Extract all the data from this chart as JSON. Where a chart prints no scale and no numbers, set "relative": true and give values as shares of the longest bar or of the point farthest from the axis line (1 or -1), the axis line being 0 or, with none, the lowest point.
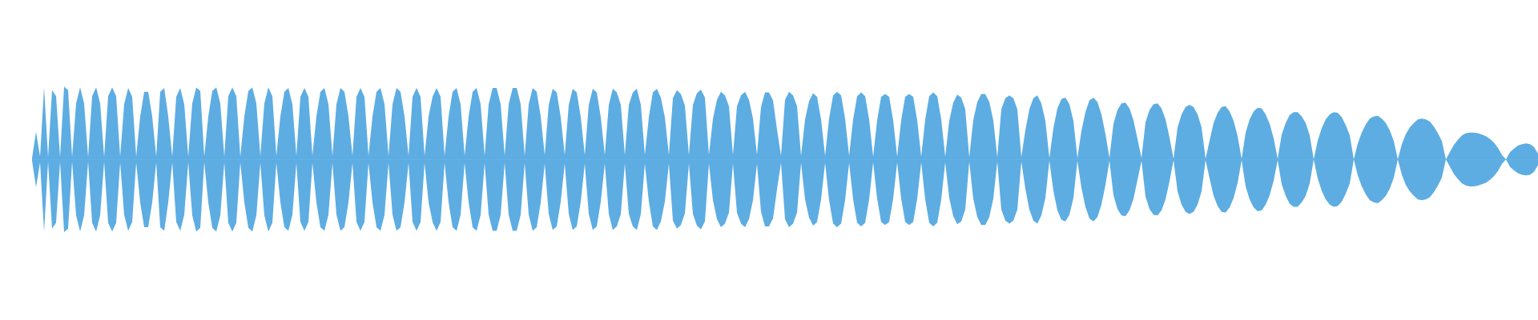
{
  "chart_data": {
    "type": "area",
    "relative": true,
    "marker": "none",
    "categories": [
      null,
      null,
      null,
      null,
      null,
      null,
      null,
      null,
      null,
      null,
      null,
      null,
      null,
      null,
      null,
      null,
      null,
      null,
      null,
      null,
      null,
      null,
      null,
      null,
      null,
      null,
      null,
      null,
      null,
      null,
      null,
      null,
      null,
      null,
      null,
      null,
      null,
      null,
      null,
      null,
      null,
      null,
      null,
      null,
      null,
      null,
      null,
      null,
      null,
      null,
      null,
      null,
      null,
      null,
      null,
      null,
      null,
      null,
      null,
      null,
      null,
      null,
      null,
      null,
      null,
      null,
      null,
      null,
      null,
      null,
      null,
      null,
      null,
      null,
      null,
      null,
      null,
      null,
      null,
      null,
      null,
      null,
      null,
      null,
      null,
      null,
      null,
      null,
      null,
      null,
      null,
      null,
      null,
      null,
      null,
      null,
      null,
      null,
      null,
      null,
      null,
      null,
      null,
      null,
      null,
      null,
      null,
      null,
      null,
      null,
      null,
      null,
      null,
      null,
      null,
      null,
      null,
      null,
      null,
      null,
      null,
      null,
      null,
      null,
      null,
      null,
      null,
      null,
      null,
      null,
      null,
      null,
      null,
      null,
      null,
      null,
      null,
      null,
      null,
      null,
      null,
      null,
      null,
      null,
      null,
      null,
      null,
      null,
      null,
      null,
      null,
      null,
      null,
      null,
      null,
      null,
      null,
      null,
      null,
      null,
      null,
      null,
      null,
      null,
      null,
      null,
      null,
      null,
      null,
      null,
      null,
      null,
      null,
      null,
      null,
      null,
      null,
      null,
      null,
      null,
      null,
      null,
      null,
      null,
      null,
      null,
      null,
      null,
      null,
      null,
      null,
      null,
      null,
      null,
      null,
      null,
      null,
      null,
      null,
      null,
      null,
      null,
      null,
      null,
      null,
      null,
      null,
      null,
      null,
      null,
      null,
      null,
      null,
      null,
      null,
      null,
      null,
      null,
      null,
      null,
      null,
      null,
      null,
      null,
      null,
      null,
      null,
      null,
      null,
      null,
      null,
      null,
      null,
      null,
      null,
      null,
      null,
      null,
      null,
      null,
      null,
      null,
      null,
      null,
      null,
      null,
      null,
      null,
      null,
      null,
      null,
      null,
      null,
      null,
      null,
      null,
      null,
      null,
      null,
      null,
      null,
      null,
      null,
      null,
      null,
      null,
      null,
      null,
      null,
      null,
      null,
      null,
      null,
      null,
      null,
      null,
      null,
      null,
      null,
      null,
      null,
      null,
      null,
      null,
      null,
      null,
      null,
      null,
      null,
      null,
      null,
      null,
      null,
      null,
      null,
      null,
      null,
      null,
      null,
      null,
      null,
      null,
      null,
      null,
      null,
      null,
      null,
      null,
      null,
      null,
      null,
      null,
      null,
      null,
      null,
      null,
      null,
      null,
      null,
      null,
      null,
      null,
      null,
      null,
      null,
      null,
      null,
      null,
      null,
      null,
      null,
      null,
      null,
      null,
      null,
      null,
      null,
      null,
      null,
      null,
      null,
      null,
      null,
      null,
      null,
      null,
      null,
      null,
      null,
      null,
      null,
      null,
      null,
      null,
      null,
      null,
      null,
      null,
      null,
      null,
      null,
      null,
      null,
      null,
      null,
      null,
      null,
      null,
      null,
      null,
      null,
      null,
      null,
      null,
      null,
      null,
      null
    ],
    "series": [
      {
        "color": "#5dade2",
        "values": [
          0.02,
          0.38,
          0.04,
          0.99,
          0.03,
          0.95,
          0.87,
          0.03,
          1.0,
          0.95,
          0.03,
          0.77,
          0.99,
          0.77,
          0.03,
          0.87,
          0.99,
          0.77,
          0.03,
          0.87,
          0.99,
          0.87,
          0.04,
          0.76,
          0.98,
          0.86,
          0.04,
          0.59,
          0.93,
          0.93,
          0.59,
          0.04,
          0.93,
          0.98,
          0.59,
          0.04,
          0.86,
          0.98,
          0.76,
          0.04,
          0.77,
          0.99,
          0.94,
          0.04,
          0.59,
          0.94,
          0.99,
          0.77,
          0.04,
          0.87,
          0.99,
          0.87,
          0.04,
          0.59,
          0.94,
          0.99,
          0.77,
          0.05,
          0.77,
          0.99,
          0.87,
          0.05,
          0.59,
          0.93,
          0.98,
          0.76,
          0.05,
          0.86,
          0.98,
          0.86,
          0.05,
          0.59,
          0.93,
          0.98,
          0.76,
          0.05,
          0.76,
          0.98,
          0.93,
          0.59,
          0.05,
          0.86,
          0.98,
          0.86,
          0.05,
          0.59,
          0.93,
          0.98,
          0.76,
          0.05,
          0.76,
          0.98,
          0.93,
          0.59,
          0.05,
          0.86,
          0.98,
          0.86,
          0.05,
          0.59,
          0.86,
          0.98,
          0.86,
          0.05,
          0.59,
          0.93,
          0.98,
          0.76,
          0.05,
          0.59,
          0.93,
          0.98,
          0.76,
          0.05,
          0.76,
          0.98,
          0.98,
          0.76,
          0.05,
          0.76,
          0.98,
          0.98,
          0.76,
          0.05,
          0.76,
          0.98,
          0.93,
          0.59,
          0.06,
          0.75,
          0.97,
          0.92,
          0.58,
          0.06,
          0.75,
          0.97,
          0.92,
          0.58,
          0.06,
          0.75,
          0.97,
          0.92,
          0.58,
          0.06,
          0.75,
          0.97,
          0.92,
          0.75,
          0.06,
          0.75,
          0.92,
          0.97,
          0.75,
          0.06,
          0.58,
          0.92,
          0.97,
          0.85,
          0.58,
          0.06,
          0.84,
          0.95,
          0.9,
          0.74,
          0.06,
          0.75,
          0.91,
          0.96,
          0.85,
          0.06,
          0.56,
          0.82,
          0.93,
          0.88,
          0.73,
          0.06,
          0.73,
          0.88,
          0.93,
          0.82,
          0.56,
          0.06,
          0.72,
          0.92,
          0.92,
          0.81,
          0.41,
          0.05,
          0.82,
          0.93,
          0.88,
          0.73,
          0.05,
          0.55,
          0.8,
          0.91,
          0.86,
          0.55,
          0.05,
          0.56,
          0.88,
          0.93,
          0.88,
          0.56,
          0.05,
          0.55,
          0.87,
          0.92,
          0.87,
          0.55,
          0.04,
          0.54,
          0.86,
          0.9,
          0.86,
          0.54,
          0.04,
          0.54,
          0.86,
          0.9,
          0.86,
          0.54,
          0.04,
          0.55,
          0.87,
          0.92,
          0.87,
          0.55,
          0.04,
          0.53,
          0.78,
          0.89,
          0.85,
          0.69,
          0.03,
          0.54,
          0.79,
          0.9,
          0.9,
          0.79,
          0.54,
          0.03,
          0.69,
          0.84,
          0.88,
          0.84,
          0.69,
          0.03,
          0.4,
          0.69,
          0.84,
          0.88,
          0.77,
          0.53,
          0.02,
          0.43,
          0.7,
          0.83,
          0.85,
          0.76,
          0.53,
          0.02,
          0.39,
          0.65,
          0.81,
          0.85,
          0.79,
          0.62,
          0.35,
          0.02,
          0.49,
          0.68,
          0.77,
          0.78,
          0.7,
          0.54,
          0.28,
          0.02,
          0.51,
          0.68,
          0.76,
          0.77,
          0.7,
          0.55,
          0.3,
          0.01,
          0.44,
          0.62,
          0.72,
          0.75,
          0.72,
          0.62,
          0.44,
          0.01,
          0.26,
          0.5,
          0.64,
          0.72,
          0.73,
          0.66,
          0.53,
          0.32,
          0.01,
          0.37,
          0.55,
          0.66,
          0.71,
          0.7,
          0.62,
          0.49,
          0.29,
          0.01,
          0.34,
          0.5,
          0.61,
          0.65,
          0.65,
          0.59,
          0.5,
          0.33,
          0,
          0.26,
          0.43,
          0.55,
          0.62,
          0.65,
          0.64,
          0.58,
          0.47,
          0.33,
          0,
          0.22,
          0.37,
          0.48,
          0.56,
          0.59,
          0.6,
          0.56,
          0.5,
          0.4,
          0.25,
          0,
          0.21,
          0.35,
          0.44,
          0.5,
          0.55,
          0.56,
          0.55,
          0.52,
          0.45,
          0.36,
          0.25,
          0,
          0.1,
          0.2,
          0.27,
          0.33,
          0.36,
          0.37,
          0.37,
          0.36,
          0.34,
          0.32,
          0.28,
          0.23,
          0.16,
          0.06,
          0,
          0.1,
          0.15,
          0.19,
          0.21,
          0.22,
          0.21,
          0.17,
          0.08
        ]
      },
      {
        "color": "#5dade2",
        "values": [
          -0.02,
          -0.38,
          -0.04,
          -0.99,
          -0.03,
          -0.95,
          -0.87,
          -0.03,
          -1.0,
          -0.95,
          -0.03,
          -0.77,
          -0.99,
          -0.77,
          -0.03,
          -0.87,
          -0.99,
          -0.77,
          -0.03,
          -0.87,
          -0.99,
          -0.87,
          -0.04,
          -0.76,
          -0.98,
          -0.86,
          -0.04,
          -0.59,
          -0.93,
          -0.93,
          -0.59,
          -0.04,
          -0.93,
          -0.98,
          -0.59,
          -0.04,
          -0.86,
          -0.98,
          -0.76,
          -0.04,
          -0.77,
          -0.99,
          -0.94,
          -0.04,
          -0.59,
          -0.94,
          -0.99,
          -0.77,
          -0.04,
          -0.87,
          -0.99,
          -0.87,
          -0.04,
          -0.59,
          -0.94,
          -0.99,
          -0.77,
          -0.05,
          -0.77,
          -0.99,
          -0.87,
          -0.05,
          -0.59,
          -0.93,
          -0.98,
          -0.76,
          -0.05,
          -0.86,
          -0.98,
          -0.86,
          -0.05,
          -0.59,
          -0.93,
          -0.98,
          -0.76,
          -0.05,
          -0.76,
          -0.98,
          -0.93,
          -0.59,
          -0.05,
          -0.86,
          -0.98,
          -0.86,
          -0.05,
          -0.59,
          -0.93,
          -0.98,
          -0.76,
          -0.05,
          -0.76,
          -0.98,
          -0.93,
          -0.59,
          -0.05,
          -0.86,
          -0.98,
          -0.86,
          -0.05,
          -0.59,
          -0.86,
          -0.98,
          -0.86,
          -0.05,
          -0.59,
          -0.93,
          -0.98,
          -0.76,
          -0.05,
          -0.59,
          -0.93,
          -0.98,
          -0.76,
          -0.05,
          -0.76,
          -0.98,
          -0.98,
          -0.76,
          -0.05,
          -0.76,
          -0.98,
          -0.98,
          -0.76,
          -0.05,
          -0.76,
          -0.98,
          -0.93,
          -0.59,
          -0.06,
          -0.75,
          -0.97,
          -0.92,
          -0.58,
          -0.06,
          -0.75,
          -0.97,
          -0.92,
          -0.58,
          -0.06,
          -0.75,
          -0.97,
          -0.92,
          -0.58,
          -0.06,
          -0.75,
          -0.97,
          -0.92,
          -0.75,
          -0.06,
          -0.75,
          -0.92,
          -0.97,
          -0.75,
          -0.06,
          -0.58,
          -0.92,
          -0.97,
          -0.85,
          -0.58,
          -0.06,
          -0.84,
          -0.95,
          -0.9,
          -0.74,
          -0.06,
          -0.75,
          -0.91,
          -0.96,
          -0.85,
          -0.06,
          -0.56,
          -0.82,
          -0.93,
          -0.88,
          -0.73,
          -0.06,
          -0.73,
          -0.88,
          -0.93,
          -0.82,
          -0.56,
          -0.06,
          -0.72,
          -0.92,
          -0.92,
          -0.81,
          -0.41,
          -0.05,
          -0.82,
          -0.93,
          -0.88,
          -0.73,
          -0.05,
          -0.55,
          -0.8,
          -0.91,
          -0.86,
          -0.55,
          -0.05,
          -0.56,
          -0.88,
          -0.93,
          -0.88,
          -0.56,
          -0.05,
          -0.55,
          -0.87,
          -0.92,
          -0.87,
          -0.55,
          -0.04,
          -0.54,
          -0.86,
          -0.9,
          -0.86,
          -0.54,
          -0.04,
          -0.54,
          -0.86,
          -0.9,
          -0.86,
          -0.54,
          -0.04,
          -0.55,
          -0.87,
          -0.92,
          -0.87,
          -0.55,
          -0.04,
          -0.53,
          -0.78,
          -0.89,
          -0.85,
          -0.69,
          -0.03,
          -0.54,
          -0.79,
          -0.9,
          -0.9,
          -0.79,
          -0.54,
          -0.03,
          -0.69,
          -0.84,
          -0.88,
          -0.84,
          -0.69,
          -0.03,
          -0.4,
          -0.69,
          -0.84,
          -0.88,
          -0.77,
          -0.53,
          -0.02,
          -0.43,
          -0.7,
          -0.83,
          -0.85,
          -0.76,
          -0.53,
          -0.02,
          -0.39,
          -0.65,
          -0.81,
          -0.85,
          -0.79,
          -0.62,
          -0.35,
          -0.02,
          -0.49,
          -0.68,
          -0.77,
          -0.78,
          -0.7,
          -0.54,
          -0.28,
          -0.02,
          -0.51,
          -0.68,
          -0.76,
          -0.77,
          -0.7,
          -0.55,
          -0.3,
          -0.01,
          -0.44,
          -0.62,
          -0.72,
          -0.75,
          -0.72,
          -0.62,
          -0.44,
          -0.01,
          -0.26,
          -0.5,
          -0.64,
          -0.72,
          -0.73,
          -0.66,
          -0.53,
          -0.32,
          -0.01,
          -0.37,
          -0.55,
          -0.66,
          -0.71,
          -0.7,
          -0.62,
          -0.49,
          -0.29,
          -0.01,
          -0.34,
          -0.5,
          -0.61,
          -0.65,
          -0.65,
          -0.59,
          -0.5,
          -0.33,
          0,
          -0.26,
          -0.43,
          -0.55,
          -0.62,
          -0.65,
          -0.64,
          -0.58,
          -0.47,
          -0.33,
          0,
          -0.22,
          -0.37,
          -0.48,
          -0.56,
          -0.59,
          -0.6,
          -0.56,
          -0.5,
          -0.4,
          -0.25,
          0,
          -0.21,
          -0.35,
          -0.44,
          -0.5,
          -0.55,
          -0.56,
          -0.55,
          -0.52,
          -0.45,
          -0.36,
          -0.25,
          0,
          -0.1,
          -0.2,
          -0.27,
          -0.33,
          -0.36,
          -0.37,
          -0.37,
          -0.36,
          -0.34,
          -0.32,
          -0.28,
          -0.23,
          -0.16,
          -0.06,
          0,
          -0.1,
          -0.15,
          -0.19,
          -0.21,
          -0.22,
          -0.21,
          -0.17,
          -0.08
        ]
      }
    ]
  }
}
